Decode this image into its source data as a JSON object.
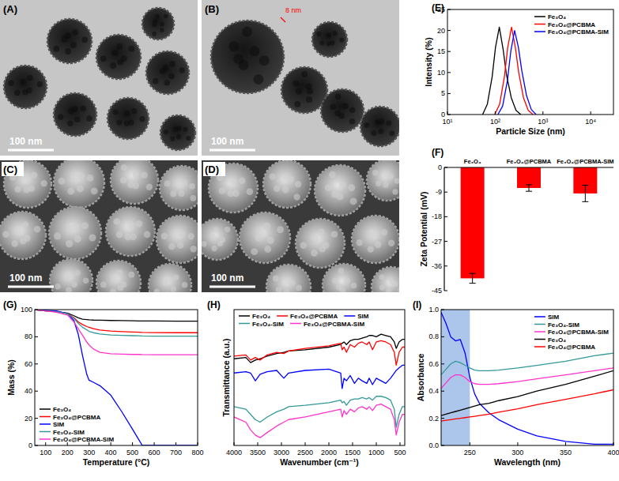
{
  "chart_data": [
    {
      "type": "image",
      "title": "(A)",
      "scale_bar": "100 nm",
      "color": "#c6c6c6"
    },
    {
      "type": "image",
      "title": "(B)",
      "scale_bar": "100 nm",
      "annotation": "8 nm",
      "color": "#c6c6c6"
    },
    {
      "type": "image",
      "title": "(C)",
      "scale_bar": "100 nm",
      "color": "#3a3a3a"
    },
    {
      "type": "image",
      "title": "(D)",
      "scale_bar": "100 nm",
      "color": "#3a3a3a"
    },
    {
      "type": "line",
      "title": "(E)",
      "x_label": "Particle Size (nm)",
      "y_label": "Intensity (%)",
      "log": "x",
      "xlim": [
        10,
        30000
      ],
      "xticks": [
        {
          "value": 10,
          "label": "10¹"
        },
        {
          "value": 100,
          "label": "10²"
        },
        {
          "value": 1000,
          "label": "10³"
        },
        {
          "value": 10000,
          "label": "10⁴"
        }
      ],
      "ylim": [
        0,
        25
      ],
      "yticks": [
        0,
        5,
        10,
        15,
        20,
        25
      ],
      "legend": "upper right",
      "series": [
        {
          "name": "Fe₃O₄",
          "color": "#000000",
          "x": [
            54.5,
            68.6,
            86.4,
            101.5,
            122,
            146.6,
            172,
            217,
            273,
            344
          ],
          "values": [
            0,
            2.5,
            9,
            16,
            20.8,
            15.5,
            9.5,
            4,
            1,
            0
          ]
        },
        {
          "name": "Fe₃O₄@PCBMA",
          "color": "#ff0000",
          "x": [
            98,
            124,
            156,
            183,
            220,
            264,
            311,
            391,
            492,
            619
          ],
          "values": [
            0,
            2.5,
            9,
            16,
            20.8,
            16,
            10,
            4,
            1,
            0
          ]
        },
        {
          "name": "Fe₃O₄@PCBMA-SIM",
          "color": "#0000ff",
          "x": [
            114,
            143,
            180,
            212,
            255,
            306,
            360,
            453,
            570,
            718
          ],
          "values": [
            0,
            2,
            8,
            15,
            20,
            16,
            10.5,
            4.5,
            1.2,
            0
          ]
        }
      ]
    },
    {
      "type": "bar",
      "title": "(F)",
      "y_label": "Zeta Potential (mV)",
      "categories": [
        "Fe₃O₄",
        "Fe₃O₄@PCBMA",
        "Fe₃O₄@PCBMA-SIM"
      ],
      "values": [
        -40.5,
        -7.5,
        -9.5
      ],
      "errors": [
        1.8,
        1.2,
        3.0
      ],
      "color": "#ff0000",
      "ylim": [
        -45,
        0
      ],
      "yticks": [
        0,
        -9,
        -18,
        -27,
        -36,
        -45
      ]
    },
    {
      "type": "line",
      "title": "(G)",
      "x_label": "Temperature (°C)",
      "y_label": "Mass (%)",
      "xlim": [
        50,
        800
      ],
      "xticks": [
        100,
        200,
        300,
        400,
        500,
        600,
        700,
        800
      ],
      "ylim": [
        0,
        100
      ],
      "yticks": [
        0,
        20,
        40,
        60,
        80,
        100
      ],
      "legend": "lower left",
      "x": [
        50,
        100,
        150,
        200,
        230,
        250,
        270,
        290,
        300,
        320,
        350,
        400,
        450,
        500,
        530,
        545,
        600,
        700,
        800
      ],
      "series": [
        {
          "name": "Fe₃O₄",
          "color": "#000000",
          "values": [
            100,
            99,
            98.5,
            97.5,
            95.5,
            94,
            93,
            92.7,
            92.5,
            92.3,
            92.2,
            92,
            91.9,
            91.8,
            91.7,
            91.7,
            91.6,
            91.5,
            91.5
          ]
        },
        {
          "name": "Fe₃O₄@PCBMA",
          "color": "#ff0000",
          "values": [
            100,
            99,
            98.5,
            97,
            94,
            91,
            89,
            87.5,
            87,
            86,
            85,
            84.2,
            83.8,
            83.5,
            83.3,
            83.2,
            83.1,
            83,
            83
          ]
        },
        {
          "name": "SIM",
          "color": "#0000ff",
          "values": [
            100,
            99.5,
            99,
            97,
            92,
            82,
            66,
            52,
            48,
            46.5,
            44,
            37,
            25,
            12,
            4,
            0,
            0,
            0,
            0
          ]
        },
        {
          "name": "Fe₃O₄-SIM",
          "color": "#339999",
          "values": [
            100,
            99,
            98.5,
            97,
            93.5,
            90,
            87,
            85,
            84,
            83,
            82,
            81.3,
            81,
            80.8,
            80.7,
            80.6,
            80.5,
            80.5,
            80.5
          ]
        },
        {
          "name": "Fe₃O₄@PCBMA-SIM",
          "color": "#ff33cc",
          "values": [
            100,
            99,
            98,
            96,
            91,
            86,
            81,
            76,
            74,
            71,
            68.5,
            67.5,
            67.2,
            67,
            67,
            66.9,
            66.8,
            66.8,
            66.8
          ]
        }
      ]
    },
    {
      "type": "line",
      "title": "(H)",
      "x_label": "Wavenumber (cm⁻¹)",
      "y_label": "Transmittance (a.u.)",
      "xlim": [
        4000,
        400
      ],
      "xticks": [
        4000,
        3500,
        3000,
        2500,
        2000,
        1500,
        1000,
        500
      ],
      "ylim": [
        0,
        105
      ],
      "tick_labels": "x",
      "legend": "top",
      "x": [
        4000,
        3750,
        3650,
        3550,
        3450,
        3300,
        3100,
        2950,
        2850,
        2500,
        2000,
        1750,
        1720,
        1680,
        1630,
        1550,
        1460,
        1380,
        1300,
        1200,
        1150,
        1080,
        1000,
        900,
        800,
        700,
        620,
        580,
        520,
        450,
        400
      ],
      "series": [
        {
          "name": "Fe₃O₄",
          "color": "#000000",
          "values": [
            67,
            68,
            64,
            66,
            67,
            69,
            71,
            72,
            73,
            74,
            76,
            78,
            79,
            80,
            78,
            81,
            82,
            82,
            83,
            84,
            85,
            85,
            84,
            86,
            85,
            84,
            80,
            75,
            80,
            82,
            82
          ]
        },
        {
          "name": "Fe₃O₄@PCBMA",
          "color": "#ff0000",
          "values": [
            69,
            70,
            66,
            68,
            66,
            70,
            72,
            71,
            73,
            75,
            77,
            79,
            74,
            76,
            72,
            78,
            76,
            79,
            80,
            78,
            80,
            74,
            80,
            81,
            80,
            78,
            72,
            62,
            72,
            76,
            76
          ]
        },
        {
          "name": "SIM",
          "color": "#0000ff",
          "values": [
            56,
            57,
            56,
            50,
            55,
            57,
            58,
            52,
            56,
            58,
            59,
            56,
            44,
            52,
            50,
            54,
            48,
            52,
            50,
            48,
            52,
            47,
            52,
            50,
            48,
            52,
            56,
            58,
            60,
            62,
            62
          ]
        },
        {
          "name": "Fe₃O₄-SIM",
          "color": "#339999",
          "values": [
            30,
            28,
            24,
            20,
            18,
            22,
            26,
            28,
            30,
            31,
            33,
            35,
            33,
            34,
            31,
            35,
            36,
            36,
            37,
            36,
            37,
            35,
            38,
            38,
            37,
            35,
            28,
            14,
            24,
            30,
            30
          ]
        },
        {
          "name": "Fe₃O₄@PCBMA-SIM",
          "color": "#ff33cc",
          "values": [
            22,
            18,
            12,
            8,
            6,
            10,
            15,
            18,
            20,
            22,
            26,
            28,
            22,
            27,
            24,
            28,
            26,
            29,
            30,
            28,
            30,
            27,
            31,
            32,
            30,
            28,
            20,
            8,
            18,
            24,
            24
          ]
        }
      ]
    },
    {
      "type": "line",
      "title": "(I)",
      "x_label": "Wavelength (nm)",
      "y_label": "Absorbance",
      "xlim": [
        220,
        400
      ],
      "xticks": [
        250,
        300,
        350,
        400
      ],
      "ylim": [
        0,
        1
      ],
      "yticks": [
        {
          "value": 0,
          "label": "0.0"
        },
        0.2,
        0.4,
        0.6,
        0.8,
        {
          "value": 1,
          "label": "1.0"
        }
      ],
      "shaded_x": [
        220,
        250
      ],
      "legend": "upper right",
      "x": [
        220,
        225,
        230,
        235,
        240,
        245,
        250,
        255,
        260,
        270,
        280,
        300,
        320,
        350,
        380,
        400
      ],
      "series": [
        {
          "name": "SIM",
          "color": "#0000ff",
          "values": [
            0.98,
            0.9,
            0.8,
            0.77,
            0.78,
            0.68,
            0.5,
            0.38,
            0.31,
            0.24,
            0.19,
            0.12,
            0.07,
            0.03,
            0.01,
            0.01
          ]
        },
        {
          "name": "Fe₃O₄-SIM",
          "color": "#339999",
          "values": [
            0.52,
            0.56,
            0.6,
            0.62,
            0.61,
            0.59,
            0.57,
            0.555,
            0.55,
            0.55,
            0.555,
            0.57,
            0.59,
            0.62,
            0.66,
            0.68
          ]
        },
        {
          "name": "Fe₃O₄@PCBMA-SIM",
          "color": "#ff33cc",
          "values": [
            0.42,
            0.46,
            0.5,
            0.52,
            0.52,
            0.5,
            0.47,
            0.455,
            0.45,
            0.45,
            0.455,
            0.47,
            0.49,
            0.52,
            0.55,
            0.57
          ]
        },
        {
          "name": "Fe₃O₄",
          "color": "#000000",
          "values": [
            0.22,
            0.23,
            0.24,
            0.25,
            0.26,
            0.27,
            0.28,
            0.29,
            0.3,
            0.31,
            0.33,
            0.36,
            0.4,
            0.45,
            0.51,
            0.55
          ]
        },
        {
          "name": "Fe₃O₄@PCBMA",
          "color": "#ff0000",
          "values": [
            0.18,
            0.185,
            0.19,
            0.195,
            0.2,
            0.205,
            0.21,
            0.215,
            0.22,
            0.23,
            0.245,
            0.27,
            0.3,
            0.34,
            0.38,
            0.41
          ]
        }
      ]
    }
  ]
}
